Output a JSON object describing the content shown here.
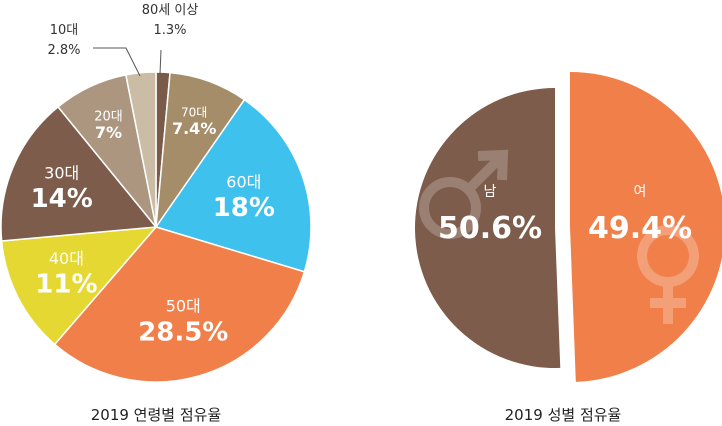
{
  "chart_data": [
    {
      "type": "pie",
      "title": "2019 연령별 점유율",
      "slices": [
        {
          "category": "80세 이상",
          "value": 1.3,
          "label": "1.3%",
          "color": "#7a5a48"
        },
        {
          "category": "70대",
          "value": 7.4,
          "label": "7.4%",
          "color": "#a58d69"
        },
        {
          "category": "60대",
          "value": 18,
          "label": "18%",
          "color": "#3fc1ee"
        },
        {
          "category": "50대",
          "value": 28.5,
          "label": "28.5%",
          "color": "#f07f4a"
        },
        {
          "category": "40대",
          "value": 11,
          "label": "11%",
          "color": "#e5d832"
        },
        {
          "category": "30대",
          "value": 14,
          "label": "14%",
          "color": "#7d5c4b"
        },
        {
          "category": "20대",
          "value": 7,
          "label": "7%",
          "color": "#ac9680"
        },
        {
          "category": "10대",
          "value": 2.8,
          "label": "2.8%",
          "color": "#cbbca6"
        }
      ]
    },
    {
      "type": "pie",
      "title": "2019 성별 점유율",
      "slices": [
        {
          "category": "남",
          "value": 50.6,
          "label": "50.6%",
          "color": "#7d5c4b",
          "icon": "male-symbol-icon"
        },
        {
          "category": "여",
          "value": 49.4,
          "label": "49.4%",
          "color": "#f07f4a",
          "icon": "female-symbol-icon"
        }
      ]
    }
  ]
}
